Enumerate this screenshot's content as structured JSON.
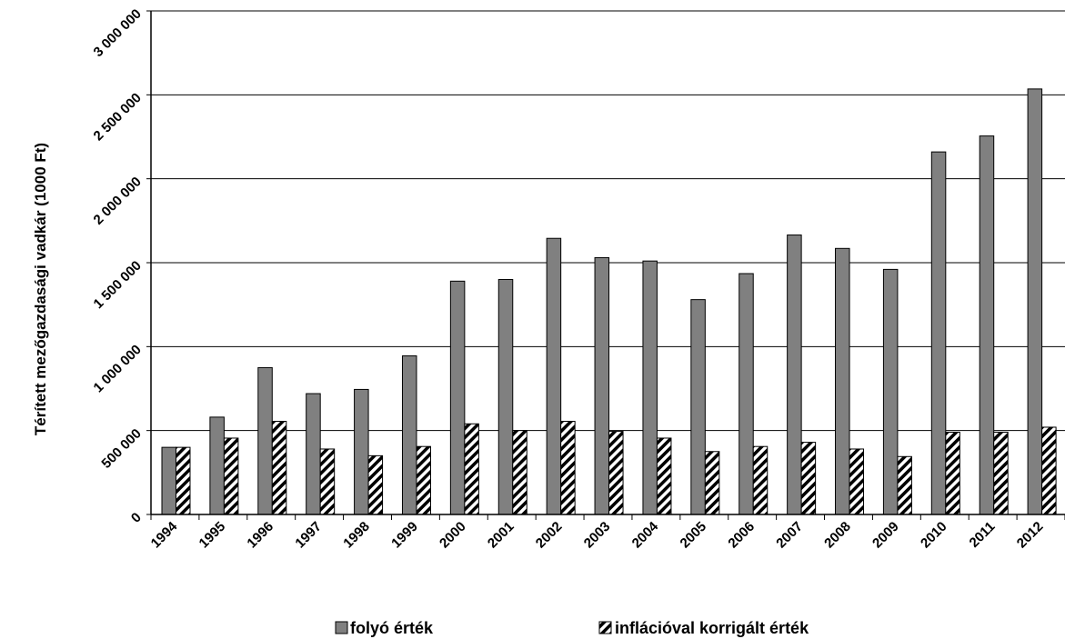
{
  "chart_data": {
    "type": "bar",
    "title": "",
    "xlabel": "",
    "ylabel": "Térített mezőgazdasági vadkár (1000 Ft)",
    "ylim": [
      0,
      3000000
    ],
    "y_ticks": [
      0,
      500000,
      1000000,
      1500000,
      2000000,
      2500000,
      3000000
    ],
    "y_tick_labels": [
      "0",
      "500 000",
      "1 000 000",
      "1 500 000",
      "2 000 000",
      "2 500 000",
      "3 000 000"
    ],
    "grid": true,
    "legend_position": "bottom",
    "categories": [
      "1994",
      "1995",
      "1996",
      "1997",
      "1998",
      "1999",
      "2000",
      "2001",
      "2002",
      "2003",
      "2004",
      "2005",
      "2006",
      "2007",
      "2008",
      "2009",
      "2010",
      "2011",
      "2012"
    ],
    "series": [
      {
        "name": "folyó érték",
        "color": "#808080",
        "pattern": "solid",
        "values": [
          400000,
          580000,
          875000,
          720000,
          745000,
          945000,
          1390000,
          1400000,
          1645000,
          1530000,
          1510000,
          1280000,
          1435000,
          1665000,
          1585000,
          1460000,
          2160000,
          2255000,
          2535000
        ]
      },
      {
        "name": "inflációval korrigált érték",
        "color": "#000000",
        "pattern": "diagonal-hatch",
        "values": [
          400000,
          455000,
          555000,
          390000,
          350000,
          405000,
          540000,
          500000,
          555000,
          495000,
          455000,
          375000,
          405000,
          430000,
          390000,
          345000,
          490000,
          490000,
          520000
        ]
      }
    ]
  }
}
